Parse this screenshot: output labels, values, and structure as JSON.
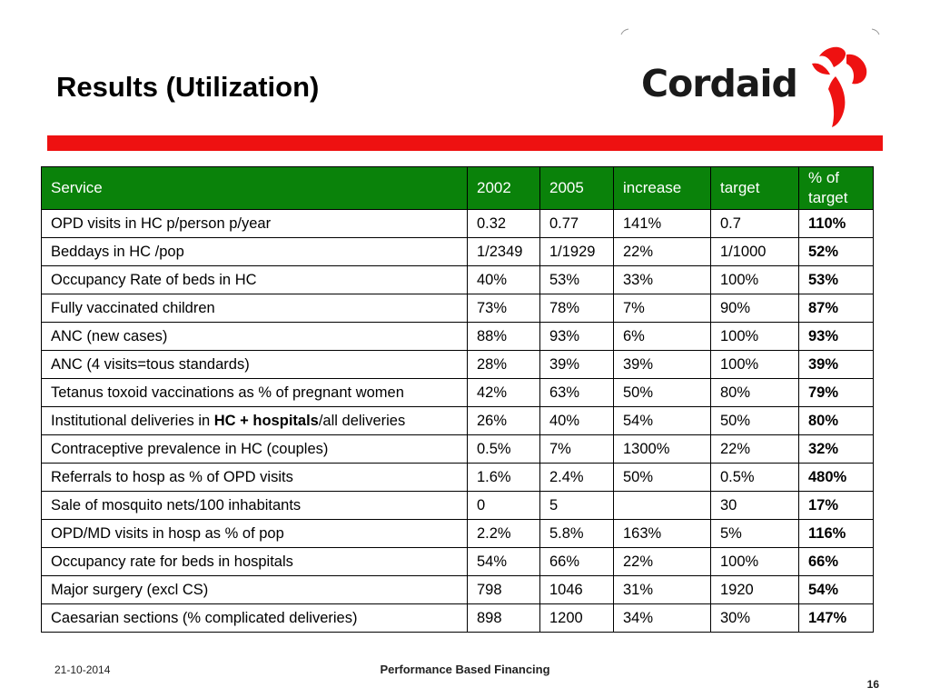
{
  "slide": {
    "title": "Results (Utilization)",
    "logo_text": "Cordaid",
    "brand_color": "#ee1111",
    "header_color": "#0a820a"
  },
  "table": {
    "headers": [
      "Service",
      "2002",
      "2005",
      "increase",
      "target",
      "% of target"
    ],
    "rows": [
      {
        "service": "OPD visits in HC p/person p/year",
        "y2002": "0.32",
        "y2005": "0.77",
        "increase": "141%",
        "target": "0.7",
        "pct": "110%"
      },
      {
        "service": "Beddays in HC /pop",
        "y2002": "1/2349",
        "y2005": "1/1929",
        "increase": "22%",
        "target": "1/1000",
        "pct": "52%"
      },
      {
        "service": "Occupancy Rate of beds in HC",
        "y2002": "40%",
        "y2005": "53%",
        "increase": "33%",
        "target": "100%",
        "pct": "53%"
      },
      {
        "service": "Fully vaccinated children",
        "y2002": "73%",
        "y2005": "78%",
        "increase": "7%",
        "target": "90%",
        "pct": "87%"
      },
      {
        "service": "ANC (new cases)",
        "y2002": "88%",
        "y2005": "93%",
        "increase": "6%",
        "target": "100%",
        "pct": "93%"
      },
      {
        "service": "ANC (4 visits=tous standards)",
        "y2002": "28%",
        "y2005": "39%",
        "increase": "39%",
        "target": "100%",
        "pct": "39%"
      },
      {
        "service": "Tetanus toxoid vaccinations as % of pregnant women",
        "y2002": "42%",
        "y2005": "63%",
        "increase": "50%",
        "target": "80%",
        "pct": "79%"
      },
      {
        "service_pre": "Institutional deliveries in ",
        "service_bold": "HC + hospitals",
        "service_post": "/all deliveries",
        "y2002": "26%",
        "y2005": "40%",
        "increase": "54%",
        "target": "50%",
        "pct": "80%"
      },
      {
        "service": "Contraceptive prevalence in HC (couples)",
        "y2002": "0.5%",
        "y2005": "7%",
        "increase": "1300%",
        "target": "22%",
        "pct": "32%"
      },
      {
        "service": "Referrals to hosp as % of OPD visits",
        "y2002": "1.6%",
        "y2005": "2.4%",
        "increase": "50%",
        "target": "0.5%",
        "pct": "480%"
      },
      {
        "service": "Sale of mosquito nets/100 inhabitants",
        "y2002": "0",
        "y2005": "5",
        "increase": "",
        "target": "30",
        "pct": "17%"
      },
      {
        "service": "OPD/MD visits in hosp as % of pop",
        "y2002": "2.2%",
        "y2005": "5.8%",
        "increase": "163%",
        "target": "5%",
        "pct": "116%"
      },
      {
        "service": "Occupancy rate for beds in hospitals",
        "y2002": "54%",
        "y2005": "66%",
        "increase": "22%",
        "target": "100%",
        "pct": "66%"
      },
      {
        "service": "Major surgery (excl CS)",
        "y2002": "798",
        "y2005": "1046",
        "increase": "31%",
        "target": "1920",
        "pct": "54%"
      },
      {
        "service": "Caesarian sections (% complicated deliveries)",
        "y2002": "898",
        "y2005": "1200",
        "increase": "34%",
        "target": "30%",
        "pct": "147%"
      }
    ]
  },
  "footer": {
    "date": "21-10-2014",
    "title": "Performance Based Financing",
    "page": "16"
  }
}
